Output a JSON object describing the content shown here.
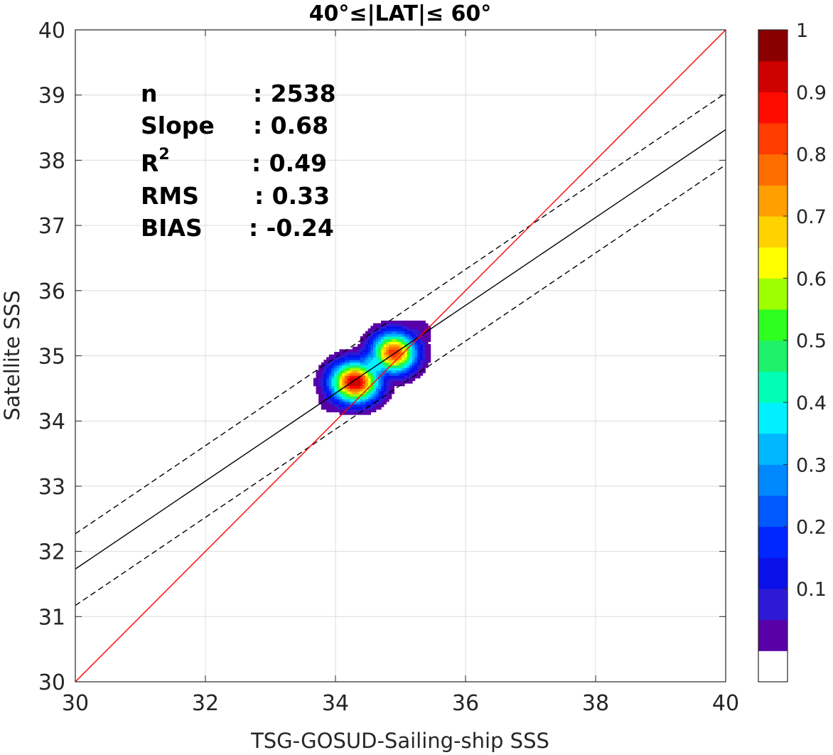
{
  "chart_data": {
    "type": "contour",
    "title": "40°≤|LAT|≤ 60°",
    "xlabel": "TSG-GOSUD-Sailing-ship SSS",
    "ylabel": "Satellite SSS",
    "xlim": [
      30,
      40
    ],
    "ylim": [
      30,
      40
    ],
    "xticks": [
      "30",
      "32",
      "34",
      "36",
      "38",
      "40"
    ],
    "yticks": [
      "30",
      "31",
      "32",
      "33",
      "34",
      "35",
      "36",
      "37",
      "38",
      "39",
      "40"
    ],
    "grid": true,
    "stats": [
      {
        "label": "n",
        "value": ": 2538"
      },
      {
        "label": "Slope",
        "value": ": 0.68"
      },
      {
        "label": "R",
        "sup": "2",
        "value": ": 0.49"
      },
      {
        "label": "RMS",
        "value": ": 0.33"
      },
      {
        "label": "BIAS",
        "value": ": -0.24"
      }
    ],
    "lines": {
      "identity": {
        "color": "#ff0000",
        "x": [
          30,
          40
        ],
        "y": [
          30,
          40
        ]
      },
      "regression": {
        "color": "#000000",
        "style": "solid",
        "x": [
          30,
          40
        ],
        "y": [
          31.73,
          38.47
        ]
      },
      "upper_bound": {
        "color": "#000000",
        "style": "dashed",
        "x": [
          30,
          40
        ],
        "y": [
          32.27,
          39.03
        ]
      },
      "lower_bound": {
        "color": "#000000",
        "style": "dashed",
        "x": [
          30,
          40
        ],
        "y": [
          31.17,
          37.93
        ]
      }
    },
    "density_peaks": [
      {
        "x": 34.3,
        "y": 34.6,
        "value": 1.0
      },
      {
        "x": 34.9,
        "y": 35.05,
        "value": 0.9
      }
    ],
    "colorbar": {
      "ticks": [
        "0.1",
        "0.2",
        "0.3",
        "0.4",
        "0.5",
        "0.6",
        "0.7",
        "0.8",
        "0.9",
        "1"
      ],
      "levels": [
        0,
        0.05,
        0.1,
        0.15,
        0.2,
        0.25,
        0.3,
        0.35,
        0.4,
        0.45,
        0.5,
        0.55,
        0.6,
        0.65,
        0.7,
        0.75,
        0.8,
        0.85,
        0.9,
        0.95,
        1.0
      ],
      "colors": [
        "#ffffff",
        "#5a00a8",
        "#2e1ad6",
        "#0a10e8",
        "#0026ff",
        "#0058ff",
        "#0088ff",
        "#00b8ff",
        "#00f0ff",
        "#00ffb4",
        "#1ef06a",
        "#2fff1e",
        "#9eff00",
        "#ffff00",
        "#ffd200",
        "#ffa000",
        "#ff6c00",
        "#ff3c00",
        "#ff0c00",
        "#cf0000",
        "#8a0000"
      ]
    }
  }
}
